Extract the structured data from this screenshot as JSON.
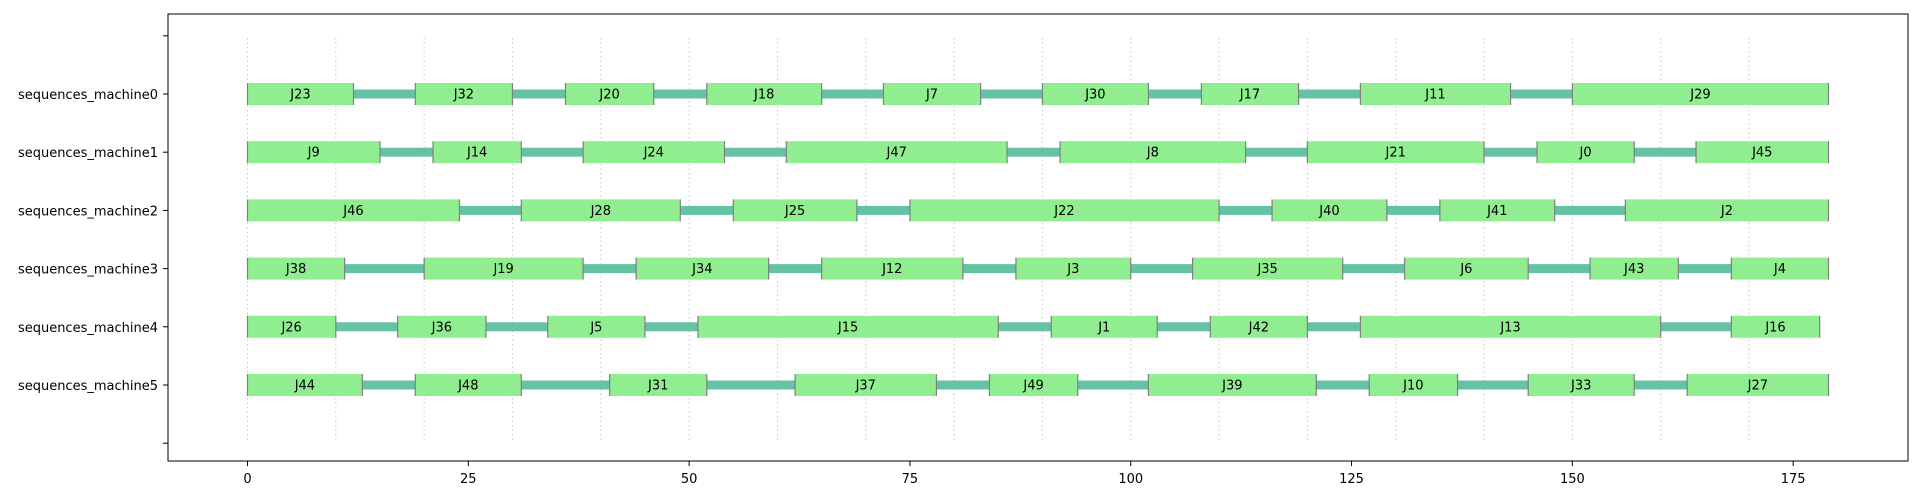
{
  "chart_data": {
    "type": "gantt",
    "xlim": [
      -9,
      188
    ],
    "xticks": [
      0,
      25,
      50,
      75,
      100,
      125,
      150,
      175
    ],
    "grid_x": [
      0,
      10,
      20,
      30,
      40,
      50,
      60,
      70,
      80,
      90,
      100,
      110,
      120,
      130,
      140,
      150,
      160,
      170
    ],
    "colors": {
      "job": "#90ee90",
      "job_edge": "#808080",
      "idle": "#66c2a5",
      "grid": "#c8c8c8"
    },
    "rows": [
      {
        "name": "sequences_machine0",
        "jobs": [
          {
            "label": "J23",
            "start": 0,
            "end": 12
          },
          {
            "label": "J32",
            "start": 19,
            "end": 30
          },
          {
            "label": "J20",
            "start": 36,
            "end": 46
          },
          {
            "label": "J18",
            "start": 52,
            "end": 65
          },
          {
            "label": "J7",
            "start": 72,
            "end": 83
          },
          {
            "label": "J30",
            "start": 90,
            "end": 102
          },
          {
            "label": "J17",
            "start": 108,
            "end": 119
          },
          {
            "label": "J11",
            "start": 126,
            "end": 143
          },
          {
            "label": "J29",
            "start": 150,
            "end": 179
          }
        ]
      },
      {
        "name": "sequences_machine1",
        "jobs": [
          {
            "label": "J9",
            "start": 0,
            "end": 15
          },
          {
            "label": "J14",
            "start": 21,
            "end": 31
          },
          {
            "label": "J24",
            "start": 38,
            "end": 54
          },
          {
            "label": "J47",
            "start": 61,
            "end": 86
          },
          {
            "label": "J8",
            "start": 92,
            "end": 113
          },
          {
            "label": "J21",
            "start": 120,
            "end": 140
          },
          {
            "label": "J0",
            "start": 146,
            "end": 157
          },
          {
            "label": "J45",
            "start": 164,
            "end": 179
          }
        ]
      },
      {
        "name": "sequences_machine2",
        "jobs": [
          {
            "label": "J46",
            "start": 0,
            "end": 24
          },
          {
            "label": "J28",
            "start": 31,
            "end": 49
          },
          {
            "label": "J25",
            "start": 55,
            "end": 69
          },
          {
            "label": "J22",
            "start": 75,
            "end": 110
          },
          {
            "label": "J40",
            "start": 116,
            "end": 129
          },
          {
            "label": "J41",
            "start": 135,
            "end": 148
          },
          {
            "label": "J2",
            "start": 156,
            "end": 179
          }
        ]
      },
      {
        "name": "sequences_machine3",
        "jobs": [
          {
            "label": "J38",
            "start": 0,
            "end": 11
          },
          {
            "label": "J19",
            "start": 20,
            "end": 38
          },
          {
            "label": "J34",
            "start": 44,
            "end": 59
          },
          {
            "label": "J12",
            "start": 65,
            "end": 81
          },
          {
            "label": "J3",
            "start": 87,
            "end": 100
          },
          {
            "label": "J35",
            "start": 107,
            "end": 124
          },
          {
            "label": "J6",
            "start": 131,
            "end": 145
          },
          {
            "label": "J43",
            "start": 152,
            "end": 162
          },
          {
            "label": "J4",
            "start": 168,
            "end": 179
          }
        ]
      },
      {
        "name": "sequences_machine4",
        "jobs": [
          {
            "label": "J26",
            "start": 0,
            "end": 10
          },
          {
            "label": "J36",
            "start": 17,
            "end": 27
          },
          {
            "label": "J5",
            "start": 34,
            "end": 45
          },
          {
            "label": "J15",
            "start": 51,
            "end": 85
          },
          {
            "label": "J1",
            "start": 91,
            "end": 103
          },
          {
            "label": "J42",
            "start": 109,
            "end": 120
          },
          {
            "label": "J13",
            "start": 126,
            "end": 160
          },
          {
            "label": "J16",
            "start": 168,
            "end": 178
          }
        ]
      },
      {
        "name": "sequences_machine5",
        "jobs": [
          {
            "label": "J44",
            "start": 0,
            "end": 13
          },
          {
            "label": "J48",
            "start": 19,
            "end": 31
          },
          {
            "label": "J31",
            "start": 41,
            "end": 52
          },
          {
            "label": "J37",
            "start": 62,
            "end": 78
          },
          {
            "label": "J49",
            "start": 84,
            "end": 94
          },
          {
            "label": "J39",
            "start": 102,
            "end": 121
          },
          {
            "label": "J10",
            "start": 127,
            "end": 137
          },
          {
            "label": "J33",
            "start": 145,
            "end": 157
          },
          {
            "label": "J27",
            "start": 163,
            "end": 179
          }
        ]
      }
    ]
  }
}
